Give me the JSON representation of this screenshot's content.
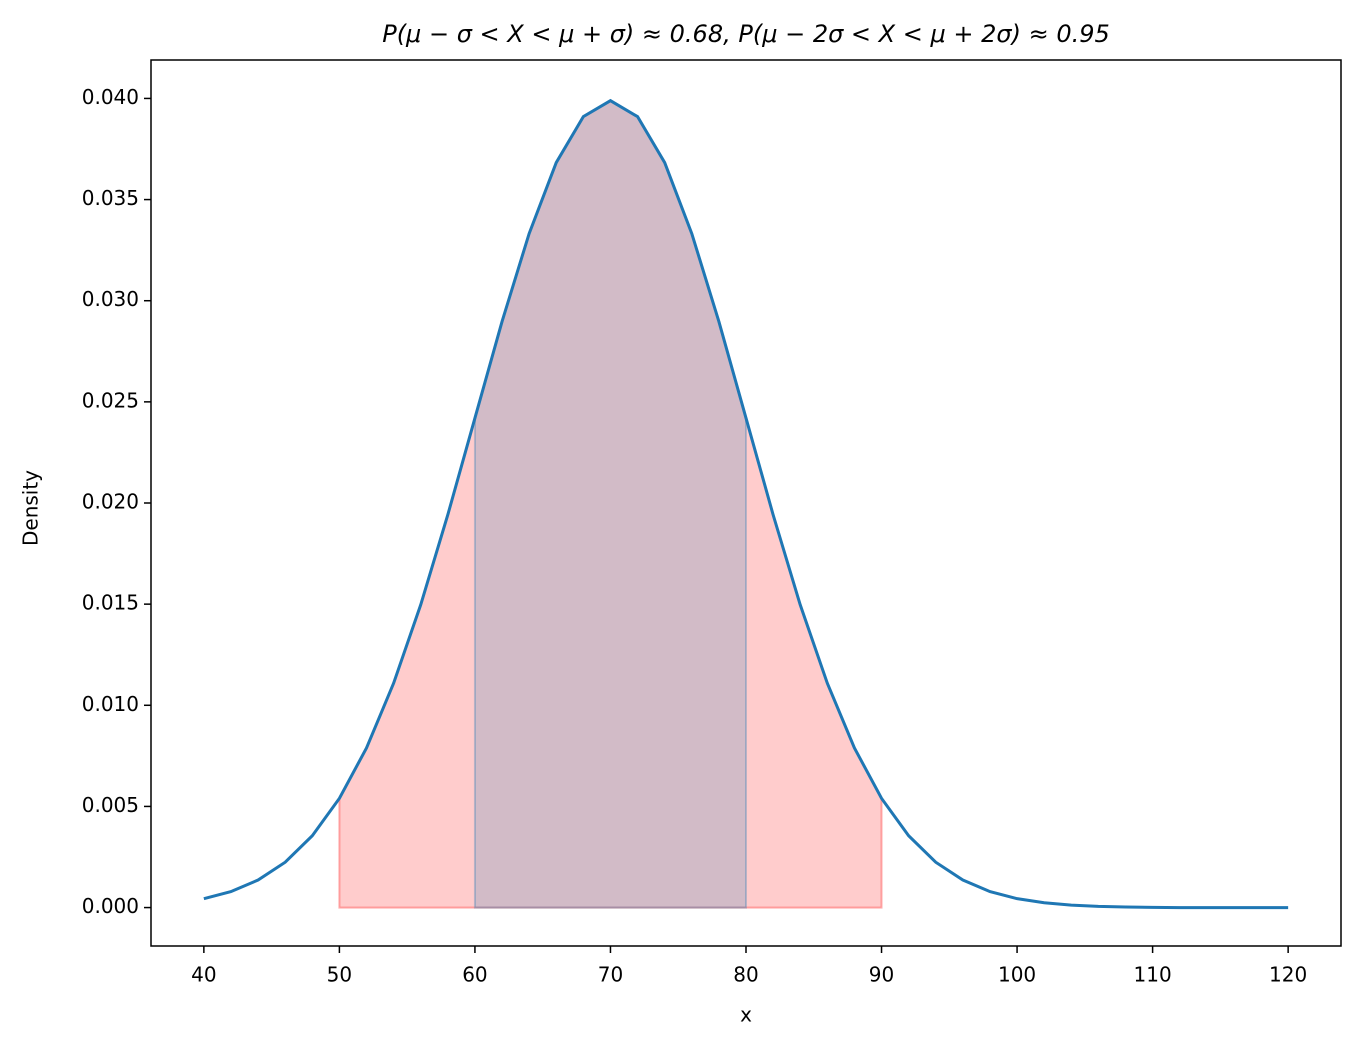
{
  "chart_data": {
    "type": "line",
    "title": "P(μ − σ < X < μ + σ) ≈ 0.68, P(μ − 2σ < X < μ + 2σ) ≈ 0.95",
    "xlabel": "x",
    "ylabel": "Density",
    "x": [
      40,
      42,
      44,
      46,
      48,
      50,
      52,
      54,
      56,
      58,
      60,
      62,
      64,
      66,
      68,
      70,
      72,
      74,
      76,
      78,
      80,
      82,
      84,
      86,
      88,
      90,
      92,
      94,
      96,
      98,
      100,
      102,
      104,
      106,
      108,
      110,
      112,
      114,
      116,
      118,
      120
    ],
    "series": [
      {
        "color": "#1f77b4",
        "values": [
          0.00044,
          0.00079,
          0.00136,
          0.00224,
          0.00355,
          0.0054,
          0.00789,
          0.01109,
          0.01497,
          0.01942,
          0.0242,
          0.02897,
          0.03332,
          0.03683,
          0.0391,
          0.03989,
          0.0391,
          0.03683,
          0.03332,
          0.02897,
          0.0242,
          0.01942,
          0.01497,
          0.01109,
          0.00789,
          0.0054,
          0.00355,
          0.00224,
          0.00136,
          0.00079,
          0.00044,
          0.00024,
          0.00012,
          6e-05,
          3e-05,
          1e-05,
          0,
          0,
          0,
          0,
          0
        ]
      }
    ],
    "shaded": [
      {
        "from": 50,
        "to": 90,
        "color": "#ff0000",
        "opacity": 0.2
      },
      {
        "from": 60,
        "to": 80,
        "color": "#1f77b4",
        "opacity": 0.2
      }
    ],
    "xlim": [
      36.1,
      123.9
    ],
    "ylim": [
      -0.0019,
      0.0419
    ],
    "xticks": [
      40,
      50,
      60,
      70,
      80,
      90,
      100,
      110,
      120
    ],
    "yticks": [
      {
        "value": 0,
        "label": "0.000"
      },
      {
        "value": 0.005,
        "label": "0.005"
      },
      {
        "value": 0.01,
        "label": "0.010"
      },
      {
        "value": 0.015,
        "label": "0.015"
      },
      {
        "value": 0.02,
        "label": "0.020"
      },
      {
        "value": 0.025,
        "label": "0.025"
      },
      {
        "value": 0.03,
        "label": "0.030"
      },
      {
        "value": 0.035,
        "label": "0.035"
      },
      {
        "value": 0.04,
        "label": "0.040"
      }
    ]
  }
}
